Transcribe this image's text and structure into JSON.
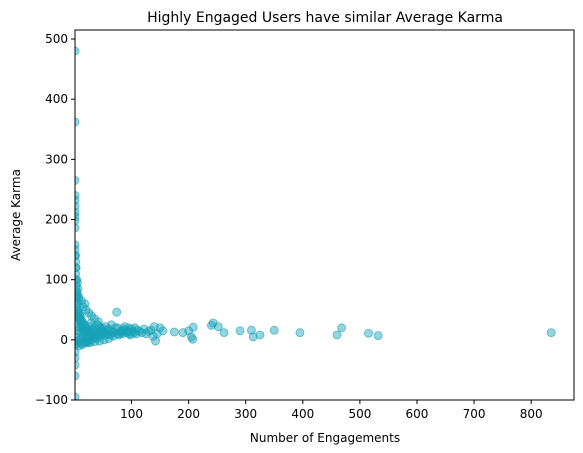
{
  "chart_data": {
    "type": "scatter",
    "title": "Highly Engaged Users have similar Average Karma",
    "xlabel": "Number of Engagements",
    "ylabel": "Average Karma",
    "xlim": [
      1,
      875
    ],
    "ylim": [
      -100,
      515
    ],
    "xticks": [
      100,
      200,
      300,
      400,
      500,
      600,
      700,
      800
    ],
    "yticks": [
      -100,
      0,
      100,
      200,
      300,
      400,
      500
    ],
    "grid": false,
    "point_color": "#17a2b8",
    "point_alpha": 0.45,
    "points": [
      [
        1,
        480
      ],
      [
        1,
        362
      ],
      [
        1,
        265
      ],
      [
        1,
        240
      ],
      [
        1,
        232
      ],
      [
        1,
        222
      ],
      [
        1,
        212
      ],
      [
        1,
        205
      ],
      [
        1,
        198
      ],
      [
        1,
        186
      ],
      [
        1,
        158
      ],
      [
        1,
        150
      ],
      [
        1,
        140
      ],
      [
        2,
        130
      ],
      [
        2,
        120
      ],
      [
        2,
        110
      ],
      [
        1,
        -20
      ],
      [
        1,
        -30
      ],
      [
        1,
        -42
      ],
      [
        1,
        -60
      ],
      [
        1,
        -95
      ],
      [
        2,
        -8
      ],
      [
        2,
        100
      ],
      [
        3,
        90
      ],
      [
        3,
        80
      ],
      [
        4,
        72
      ],
      [
        5,
        65
      ],
      [
        3,
        60
      ],
      [
        4,
        55
      ],
      [
        6,
        50
      ],
      [
        5,
        48
      ],
      [
        7,
        45
      ],
      [
        8,
        42
      ],
      [
        6,
        38
      ],
      [
        9,
        35
      ],
      [
        10,
        32
      ],
      [
        8,
        30
      ],
      [
        12,
        28
      ],
      [
        11,
        25
      ],
      [
        14,
        22
      ],
      [
        13,
        20
      ],
      [
        15,
        18
      ],
      [
        16,
        15
      ],
      [
        18,
        14
      ],
      [
        20,
        12
      ],
      [
        22,
        10
      ],
      [
        17,
        8
      ],
      [
        19,
        6
      ],
      [
        21,
        4
      ],
      [
        24,
        2
      ],
      [
        26,
        0
      ],
      [
        23,
        -2
      ],
      [
        25,
        -5
      ],
      [
        2,
        -3
      ],
      [
        4,
        -6
      ],
      [
        6,
        -2
      ],
      [
        3,
        5
      ],
      [
        5,
        10
      ],
      [
        7,
        15
      ],
      [
        9,
        20
      ],
      [
        11,
        0
      ],
      [
        13,
        5
      ],
      [
        15,
        -4
      ],
      [
        10,
        40
      ],
      [
        12,
        36
      ],
      [
        14,
        30
      ],
      [
        16,
        26
      ],
      [
        18,
        24
      ],
      [
        20,
        20
      ],
      [
        22,
        18
      ],
      [
        24,
        16
      ],
      [
        26,
        14
      ],
      [
        28,
        12
      ],
      [
        30,
        10
      ],
      [
        32,
        8
      ],
      [
        34,
        6
      ],
      [
        36,
        4
      ],
      [
        38,
        2
      ],
      [
        27,
        22
      ],
      [
        29,
        28
      ],
      [
        31,
        18
      ],
      [
        33,
        15
      ],
      [
        35,
        20
      ],
      [
        37,
        12
      ],
      [
        39,
        10
      ],
      [
        41,
        8
      ],
      [
        43,
        14
      ],
      [
        45,
        6
      ],
      [
        47,
        12
      ],
      [
        49,
        16
      ],
      [
        40,
        25
      ],
      [
        42,
        30
      ],
      [
        44,
        22
      ],
      [
        46,
        18
      ],
      [
        48,
        20
      ],
      [
        50,
        14
      ],
      [
        52,
        10
      ],
      [
        54,
        8
      ],
      [
        56,
        12
      ],
      [
        58,
        16
      ],
      [
        60,
        18
      ],
      [
        62,
        10
      ],
      [
        64,
        8
      ],
      [
        66,
        14
      ],
      [
        68,
        6
      ],
      [
        70,
        12
      ],
      [
        72,
        20
      ],
      [
        74,
        46
      ],
      [
        76,
        10
      ],
      [
        78,
        8
      ],
      [
        80,
        14
      ],
      [
        82,
        12
      ],
      [
        84,
        10
      ],
      [
        86,
        18
      ],
      [
        88,
        22
      ],
      [
        90,
        16
      ],
      [
        92,
        12
      ],
      [
        94,
        14
      ],
      [
        96,
        10
      ],
      [
        98,
        8
      ],
      [
        100,
        18
      ],
      [
        102,
        14
      ],
      [
        104,
        12
      ],
      [
        106,
        20
      ],
      [
        108,
        10
      ],
      [
        110,
        16
      ],
      [
        114,
        14
      ],
      [
        118,
        12
      ],
      [
        122,
        18
      ],
      [
        126,
        10
      ],
      [
        130,
        14
      ],
      [
        134,
        16
      ],
      [
        138,
        6
      ],
      [
        142,
        -2
      ],
      [
        140,
        22
      ],
      [
        145,
        10
      ],
      [
        150,
        20
      ],
      [
        155,
        15
      ],
      [
        175,
        13
      ],
      [
        190,
        12
      ],
      [
        200,
        15
      ],
      [
        205,
        5
      ],
      [
        207,
        1
      ],
      [
        208,
        21
      ],
      [
        240,
        24
      ],
      [
        243,
        28
      ],
      [
        252,
        22
      ],
      [
        262,
        12
      ],
      [
        290,
        15
      ],
      [
        310,
        16
      ],
      [
        313,
        5
      ],
      [
        325,
        8
      ],
      [
        350,
        16
      ],
      [
        395,
        12
      ],
      [
        460,
        8
      ],
      [
        468,
        20
      ],
      [
        515,
        11
      ],
      [
        532,
        7
      ],
      [
        835,
        12
      ],
      [
        20,
        50
      ],
      [
        25,
        45
      ],
      [
        30,
        40
      ],
      [
        35,
        35
      ],
      [
        15,
        55
      ],
      [
        18,
        60
      ],
      [
        12,
        65
      ],
      [
        8,
        70
      ],
      [
        6,
        75
      ],
      [
        4,
        80
      ],
      [
        55,
        22
      ],
      [
        65,
        25
      ],
      [
        75,
        20
      ],
      [
        85,
        15
      ],
      [
        95,
        20
      ],
      [
        2,
        140
      ],
      [
        3,
        120
      ],
      [
        4,
        100
      ],
      [
        5,
        95
      ],
      [
        6,
        85
      ],
      [
        3,
        70
      ],
      [
        28,
        -4
      ],
      [
        36,
        -3
      ],
      [
        44,
        -2
      ],
      [
        52,
        0
      ],
      [
        60,
        2
      ],
      [
        10,
        -6
      ],
      [
        14,
        -8
      ],
      [
        18,
        -5
      ],
      [
        22,
        -3
      ],
      [
        8,
        -10
      ]
    ]
  }
}
